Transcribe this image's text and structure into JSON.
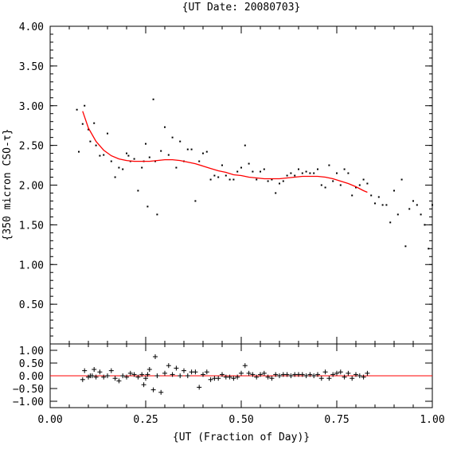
{
  "chart_data": [
    {
      "type": "scatter",
      "title": "{UT Date: 20080703}",
      "xlabel": "",
      "ylabel": "{350 micron CSO-τ}",
      "xlim": [
        0.0,
        1.0
      ],
      "ylim": [
        0.0,
        4.0
      ],
      "yticks": [
        "0.50",
        "1.00",
        "1.50",
        "2.00",
        "2.50",
        "3.00",
        "3.50",
        "4.00"
      ],
      "colors": {
        "points": "#000000",
        "fit": "#ff0000"
      },
      "series": [
        {
          "name": "",
          "marker": "dot",
          "x": [
            0.07,
            0.075,
            0.085,
            0.09,
            0.1,
            0.105,
            0.115,
            0.12,
            0.13,
            0.14,
            0.15,
            0.16,
            0.17,
            0.18,
            0.19,
            0.2,
            0.205,
            0.21,
            0.22,
            0.23,
            0.24,
            0.245,
            0.25,
            0.255,
            0.26,
            0.27,
            0.275,
            0.28,
            0.29,
            0.3,
            0.31,
            0.32,
            0.33,
            0.34,
            0.35,
            0.36,
            0.37,
            0.38,
            0.39,
            0.4,
            0.41,
            0.42,
            0.43,
            0.44,
            0.45,
            0.46,
            0.47,
            0.48,
            0.49,
            0.5,
            0.51,
            0.52,
            0.53,
            0.54,
            0.55,
            0.56,
            0.57,
            0.58,
            0.59,
            0.6,
            0.61,
            0.62,
            0.63,
            0.64,
            0.65,
            0.66,
            0.67,
            0.68,
            0.69,
            0.7,
            0.71,
            0.72,
            0.73,
            0.74,
            0.75,
            0.76,
            0.77,
            0.78,
            0.79,
            0.8,
            0.81,
            0.82,
            0.83,
            0.84,
            0.85,
            0.86,
            0.87,
            0.88,
            0.89,
            0.9,
            0.91,
            0.92,
            0.93,
            0.94,
            0.95,
            0.96,
            0.97,
            0.98,
            0.99,
            1.0
          ],
          "y": [
            2.95,
            2.42,
            2.77,
            3.0,
            2.7,
            2.55,
            2.78,
            2.5,
            2.37,
            2.38,
            2.65,
            2.3,
            2.1,
            2.22,
            2.2,
            2.4,
            2.37,
            2.3,
            2.33,
            1.93,
            2.22,
            2.3,
            2.52,
            1.73,
            2.35,
            3.08,
            2.3,
            1.63,
            2.43,
            2.73,
            2.38,
            2.6,
            2.22,
            2.55,
            2.3,
            2.45,
            2.45,
            1.8,
            2.3,
            2.4,
            2.42,
            2.07,
            2.12,
            2.1,
            2.25,
            2.12,
            2.07,
            2.07,
            2.17,
            2.22,
            2.5,
            2.27,
            2.17,
            2.07,
            2.17,
            2.2,
            2.05,
            2.07,
            1.9,
            2.02,
            2.05,
            2.12,
            2.15,
            2.12,
            2.2,
            2.15,
            2.17,
            2.15,
            2.15,
            2.2,
            2.0,
            1.97,
            2.25,
            2.05,
            2.15,
            2.0,
            2.2,
            2.15,
            1.87,
            1.97,
            2.0,
            2.07,
            2.02,
            1.87,
            1.77,
            1.85,
            1.75,
            1.75,
            1.53,
            1.93,
            1.63,
            2.07,
            1.23,
            1.7,
            1.8,
            1.75,
            1.63,
            1.5,
            1.2,
            1.75
          ]
        },
        {
          "name": "",
          "marker": "line",
          "x": [
            0.085,
            0.1,
            0.12,
            0.14,
            0.16,
            0.18,
            0.2,
            0.22,
            0.24,
            0.26,
            0.28,
            0.3,
            0.32,
            0.34,
            0.36,
            0.38,
            0.4,
            0.42,
            0.44,
            0.46,
            0.48,
            0.5,
            0.52,
            0.54,
            0.56,
            0.58,
            0.6,
            0.62,
            0.64,
            0.66,
            0.68,
            0.7,
            0.72,
            0.74,
            0.76,
            0.78,
            0.8,
            0.82,
            0.83
          ],
          "y": [
            2.93,
            2.72,
            2.55,
            2.44,
            2.37,
            2.33,
            2.31,
            2.3,
            2.3,
            2.3,
            2.31,
            2.32,
            2.32,
            2.31,
            2.29,
            2.27,
            2.24,
            2.21,
            2.18,
            2.16,
            2.13,
            2.12,
            2.1,
            2.09,
            2.08,
            2.08,
            2.08,
            2.09,
            2.1,
            2.11,
            2.11,
            2.11,
            2.1,
            2.08,
            2.05,
            2.02,
            1.98,
            1.93,
            1.91
          ]
        }
      ]
    },
    {
      "type": "scatter",
      "title": "",
      "xlabel": "{UT (Fraction of Day)}",
      "ylabel": "",
      "xlim": [
        0.0,
        1.0
      ],
      "ylim": [
        -1.25,
        1.25
      ],
      "xticks": [
        "0.00",
        "0.25",
        "0.50",
        "0.75",
        "1.00"
      ],
      "yticks": [
        "−1.00",
        "−0.50",
        "0.00",
        "0.50",
        "1.00"
      ],
      "colors": {
        "points": "#000000",
        "zero_line": "#ff0000"
      },
      "series": [
        {
          "name": "",
          "marker": "plus",
          "x": [
            0.085,
            0.09,
            0.1,
            0.105,
            0.11,
            0.115,
            0.12,
            0.13,
            0.14,
            0.15,
            0.16,
            0.17,
            0.18,
            0.19,
            0.2,
            0.21,
            0.22,
            0.23,
            0.24,
            0.245,
            0.25,
            0.255,
            0.26,
            0.27,
            0.275,
            0.28,
            0.29,
            0.3,
            0.31,
            0.32,
            0.33,
            0.34,
            0.35,
            0.36,
            0.37,
            0.38,
            0.39,
            0.4,
            0.41,
            0.42,
            0.43,
            0.44,
            0.45,
            0.46,
            0.47,
            0.48,
            0.49,
            0.5,
            0.51,
            0.52,
            0.53,
            0.54,
            0.55,
            0.56,
            0.57,
            0.58,
            0.59,
            0.6,
            0.61,
            0.62,
            0.63,
            0.64,
            0.65,
            0.66,
            0.67,
            0.68,
            0.69,
            0.7,
            0.71,
            0.72,
            0.73,
            0.74,
            0.75,
            0.76,
            0.77,
            0.78,
            0.79,
            0.8,
            0.81,
            0.82,
            0.83
          ],
          "y": [
            -0.15,
            0.2,
            -0.05,
            0.0,
            0.0,
            0.25,
            -0.05,
            0.15,
            -0.05,
            0.0,
            0.2,
            -0.1,
            -0.2,
            0.0,
            -0.05,
            0.1,
            0.05,
            -0.05,
            0.05,
            -0.35,
            -0.1,
            0.05,
            0.25,
            -0.55,
            0.75,
            0.0,
            -0.65,
            0.1,
            0.4,
            0.05,
            0.3,
            0.0,
            0.2,
            0.0,
            0.15,
            0.15,
            -0.45,
            0.05,
            0.15,
            -0.15,
            -0.1,
            -0.1,
            0.05,
            -0.05,
            -0.05,
            -0.1,
            -0.05,
            0.1,
            0.4,
            0.1,
            0.05,
            -0.05,
            0.05,
            0.1,
            -0.05,
            -0.1,
            0.05,
            0.0,
            0.05,
            0.05,
            0.0,
            0.05,
            0.05,
            0.05,
            0.0,
            0.05,
            0.0,
            0.05,
            -0.1,
            0.15,
            -0.1,
            0.05,
            0.1,
            0.15,
            -0.05,
            0.1,
            -0.1,
            0.05,
            0.0,
            -0.05,
            0.1
          ]
        }
      ]
    }
  ]
}
